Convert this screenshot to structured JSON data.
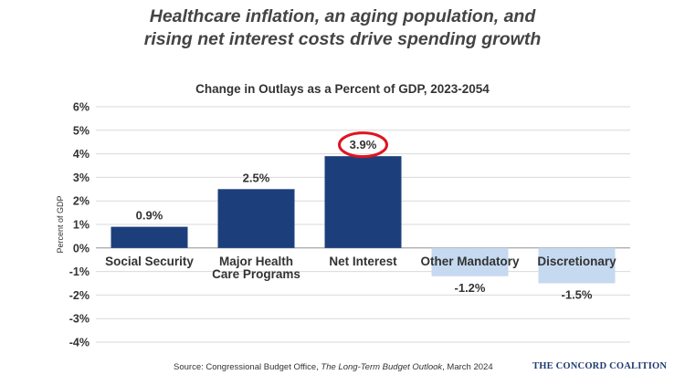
{
  "headline": {
    "line1": "Healthcare inflation, an aging population, and",
    "line2": "rising net interest costs drive spending growth"
  },
  "source": {
    "prefix": "Source: Congressional Budget Office, ",
    "title": "The Long-Term Budget Outlook",
    "suffix": ", March 2024"
  },
  "brand": "THE CONCORD COALITION",
  "colors": {
    "positive": "#1c3f7c",
    "negative": "#c5d9f1",
    "highlight_ring": "#e0141e",
    "grid": "#d9d9d9"
  },
  "chart_data": {
    "type": "bar",
    "title": "Change in Outlays as a Percent of GDP, 2023-2054",
    "ylabel": "Percent of GDP",
    "xlabel": "",
    "ylim": [
      -4,
      6
    ],
    "yticks": [
      "6%",
      "5%",
      "4%",
      "3%",
      "2%",
      "1%",
      "0%",
      "-1%",
      "-2%",
      "-3%",
      "-4%"
    ],
    "grid": true,
    "categories": [
      [
        "Social Security"
      ],
      [
        "Major Health",
        "Care Programs"
      ],
      [
        "Net Interest"
      ],
      [
        "Other Mandatory"
      ],
      [
        "Discretionary"
      ]
    ],
    "values": [
      0.9,
      2.5,
      3.9,
      -1.2,
      -1.5
    ],
    "labels": [
      "0.9%",
      "2.5%",
      "3.9%",
      "-1.2%",
      "-1.5%"
    ],
    "highlighted_index": 2
  }
}
